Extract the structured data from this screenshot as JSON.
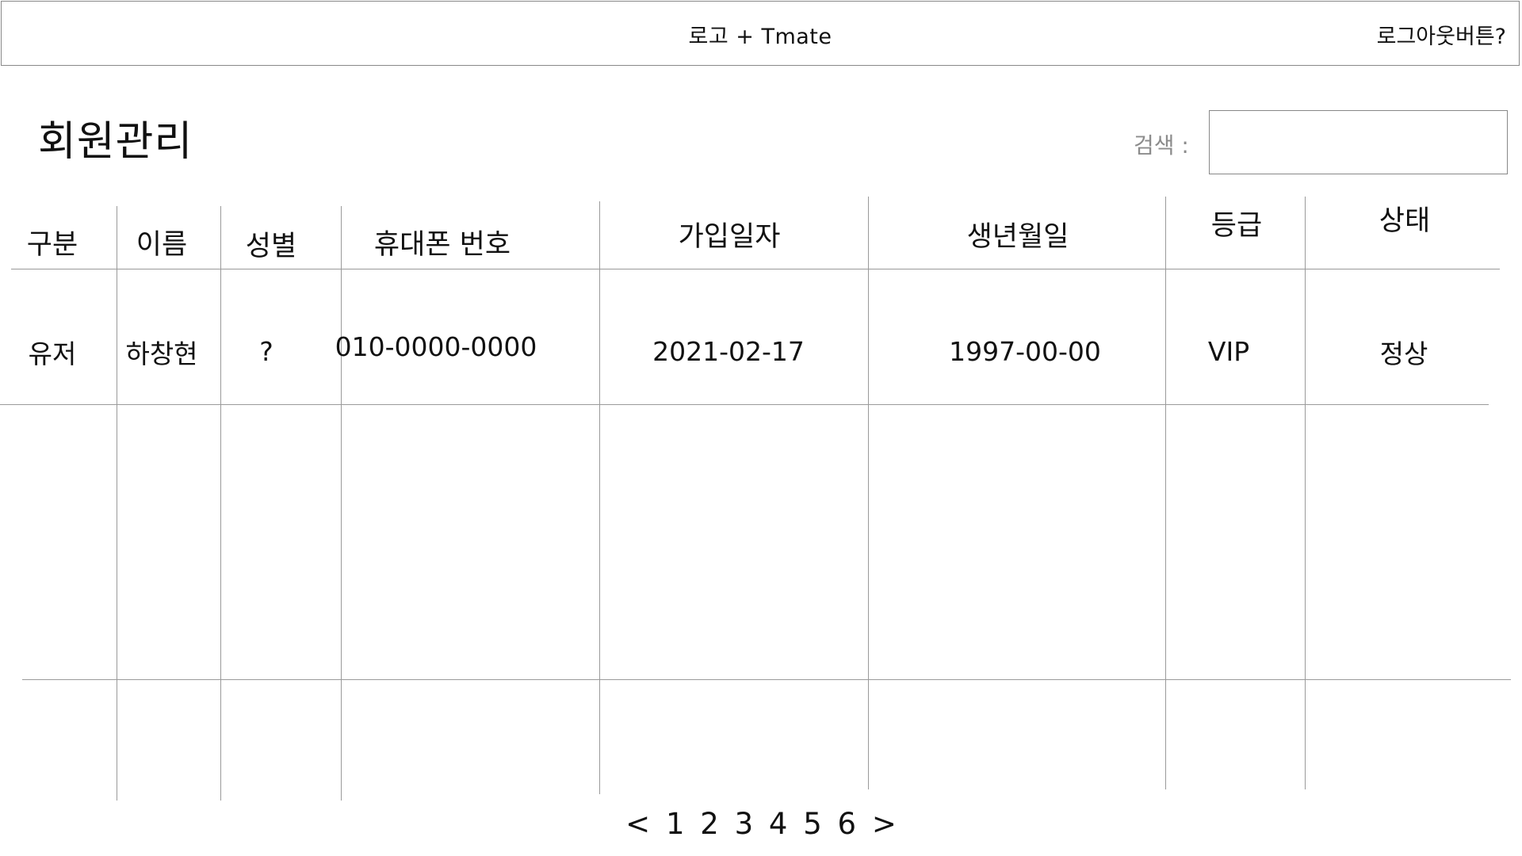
{
  "header": {
    "logo_text": "로고 + Tmate",
    "logout_label": "로그아웃버튼?"
  },
  "page_title": "회원관리",
  "search": {
    "label": "검색 :",
    "value": ""
  },
  "table": {
    "columns": [
      "구분",
      "이름",
      "성별",
      "휴대폰 번호",
      "가입일자",
      "생년월일",
      "등급",
      "상태"
    ],
    "rows": [
      [
        "유저",
        "하창현",
        "?",
        "010-0000-0000",
        "2021-02-17",
        "1997-00-00",
        "VIP",
        "정상"
      ]
    ]
  },
  "pagination": {
    "prev": "<",
    "pages": [
      "1",
      "2",
      "3",
      "4",
      "5",
      "6"
    ],
    "next": ">"
  }
}
